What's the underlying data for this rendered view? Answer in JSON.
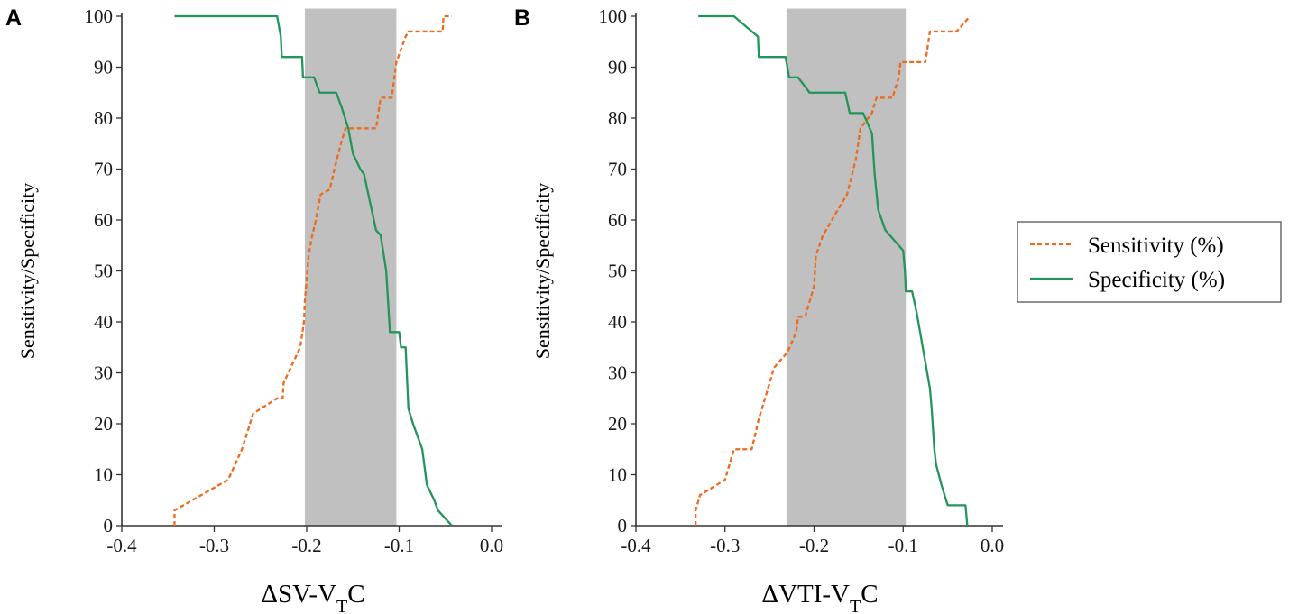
{
  "legend": {
    "sensitivity_label": "Sensitivity (%)",
    "specificity_label": "Specificity (%)"
  },
  "colors": {
    "sensitivity": "#ee6a1c",
    "specificity": "#23955a",
    "shade": "#c0c0c0",
    "axis": "#333333"
  },
  "chart_data": [
    {
      "type": "line",
      "panel": "A",
      "xlabel_main": "ΔSV-V",
      "xlabel_sub": "T",
      "xlabel_tail": "C",
      "ylabel": "Sensitivity/Specificity",
      "xlim": [
        -0.4,
        0.0
      ],
      "ylim": [
        0,
        100
      ],
      "xticks": [
        -0.4,
        -0.3,
        -0.2,
        -0.1,
        0.0
      ],
      "xtick_labels": [
        "-0.4",
        "-0.3",
        "-0.2",
        "-0.1",
        "0.0"
      ],
      "yticks": [
        0,
        10,
        20,
        30,
        40,
        50,
        60,
        70,
        80,
        90,
        100
      ],
      "ytick_labels": [
        "0",
        "10",
        "20",
        "30",
        "40",
        "50",
        "60",
        "70",
        "80",
        "90",
        "100"
      ],
      "shaded_region": [
        -0.202,
        -0.103
      ],
      "series": [
        {
          "name": "Sensitivity (%)",
          "style": "dashed",
          "points": [
            [
              -0.343,
              0
            ],
            [
              -0.343,
              3
            ],
            [
              -0.285,
              9
            ],
            [
              -0.27,
              15
            ],
            [
              -0.263,
              19
            ],
            [
              -0.258,
              22
            ],
            [
              -0.232,
              25
            ],
            [
              -0.226,
              25
            ],
            [
              -0.225,
              28
            ],
            [
              -0.207,
              35
            ],
            [
              -0.203,
              40
            ],
            [
              -0.202,
              44
            ],
            [
              -0.198,
              53
            ],
            [
              -0.194,
              57
            ],
            [
              -0.19,
              60
            ],
            [
              -0.185,
              65
            ],
            [
              -0.175,
              66
            ],
            [
              -0.17,
              70
            ],
            [
              -0.163,
              75
            ],
            [
              -0.158,
              78
            ],
            [
              -0.15,
              78
            ],
            [
              -0.142,
              78
            ],
            [
              -0.125,
              78
            ],
            [
              -0.12,
              84
            ],
            [
              -0.108,
              84
            ],
            [
              -0.103,
              91
            ],
            [
              -0.093,
              96
            ],
            [
              -0.09,
              97
            ],
            [
              -0.07,
              97
            ],
            [
              -0.053,
              97
            ],
            [
              -0.052,
              100
            ],
            [
              -0.047,
              100
            ],
            [
              -0.043,
              100
            ]
          ]
        },
        {
          "name": "Specificity (%)",
          "style": "solid",
          "points": [
            [
              -0.343,
              100
            ],
            [
              -0.232,
              100
            ],
            [
              -0.228,
              96
            ],
            [
              -0.227,
              92
            ],
            [
              -0.205,
              92
            ],
            [
              -0.204,
              88
            ],
            [
              -0.192,
              88
            ],
            [
              -0.186,
              85
            ],
            [
              -0.168,
              85
            ],
            [
              -0.162,
              82
            ],
            [
              -0.155,
              78
            ],
            [
              -0.15,
              73
            ],
            [
              -0.142,
              70
            ],
            [
              -0.138,
              69
            ],
            [
              -0.125,
              58
            ],
            [
              -0.12,
              57
            ],
            [
              -0.114,
              50
            ],
            [
              -0.11,
              38
            ],
            [
              -0.1,
              38
            ],
            [
              -0.098,
              35
            ],
            [
              -0.093,
              35
            ],
            [
              -0.09,
              23
            ],
            [
              -0.085,
              20
            ],
            [
              -0.075,
              15
            ],
            [
              -0.07,
              8
            ],
            [
              -0.062,
              5
            ],
            [
              -0.058,
              3
            ],
            [
              -0.053,
              2
            ],
            [
              -0.043,
              0
            ]
          ]
        }
      ]
    },
    {
      "type": "line",
      "panel": "B",
      "xlabel_main": "ΔVTI-V",
      "xlabel_sub": "T",
      "xlabel_tail": "C",
      "ylabel": "Sensitivity/Specificity",
      "xlim": [
        -0.4,
        0.0
      ],
      "ylim": [
        0,
        100
      ],
      "xticks": [
        -0.4,
        -0.3,
        -0.2,
        -0.1,
        0.0
      ],
      "xtick_labels": [
        "-0.4",
        "-0.3",
        "-0.2",
        "-0.1",
        "0.0"
      ],
      "yticks": [
        0,
        10,
        20,
        30,
        40,
        50,
        60,
        70,
        80,
        90,
        100
      ],
      "ytick_labels": [
        "0",
        "10",
        "20",
        "30",
        "40",
        "50",
        "60",
        "70",
        "80",
        "90",
        "100"
      ],
      "shaded_region": [
        -0.231,
        -0.097
      ],
      "series": [
        {
          "name": "Sensitivity (%)",
          "style": "dashed",
          "points": [
            [
              -0.333,
              0
            ],
            [
              -0.333,
              3
            ],
            [
              -0.328,
              6
            ],
            [
              -0.3,
              9
            ],
            [
              -0.29,
              15
            ],
            [
              -0.27,
              15
            ],
            [
              -0.262,
              21
            ],
            [
              -0.255,
              25
            ],
            [
              -0.245,
              31
            ],
            [
              -0.23,
              34
            ],
            [
              -0.22,
              38
            ],
            [
              -0.218,
              41
            ],
            [
              -0.21,
              41
            ],
            [
              -0.2,
              47
            ],
            [
              -0.198,
              53
            ],
            [
              -0.19,
              57
            ],
            [
              -0.18,
              60
            ],
            [
              -0.17,
              63
            ],
            [
              -0.163,
              65
            ],
            [
              -0.153,
              72
            ],
            [
              -0.148,
              78
            ],
            [
              -0.135,
              81
            ],
            [
              -0.13,
              84
            ],
            [
              -0.112,
              84
            ],
            [
              -0.105,
              88
            ],
            [
              -0.103,
              91
            ],
            [
              -0.095,
              91
            ],
            [
              -0.075,
              91
            ],
            [
              -0.07,
              97
            ],
            [
              -0.04,
              97
            ],
            [
              -0.025,
              100
            ]
          ]
        },
        {
          "name": "Specificity (%)",
          "style": "solid",
          "points": [
            [
              -0.33,
              100
            ],
            [
              -0.29,
              100
            ],
            [
              -0.263,
              96
            ],
            [
              -0.262,
              92
            ],
            [
              -0.232,
              92
            ],
            [
              -0.228,
              88
            ],
            [
              -0.218,
              88
            ],
            [
              -0.205,
              85
            ],
            [
              -0.185,
              85
            ],
            [
              -0.165,
              85
            ],
            [
              -0.16,
              81
            ],
            [
              -0.145,
              81
            ],
            [
              -0.135,
              77
            ],
            [
              -0.132,
              69
            ],
            [
              -0.128,
              62
            ],
            [
              -0.12,
              58
            ],
            [
              -0.1,
              54
            ],
            [
              -0.098,
              50
            ],
            [
              -0.097,
              46
            ],
            [
              -0.09,
              46
            ],
            [
              -0.085,
              42
            ],
            [
              -0.078,
              35
            ],
            [
              -0.07,
              27
            ],
            [
              -0.068,
              23
            ],
            [
              -0.065,
              15
            ],
            [
              -0.063,
              12
            ],
            [
              -0.057,
              8
            ],
            [
              -0.05,
              4
            ],
            [
              -0.04,
              4
            ],
            [
              -0.03,
              4
            ],
            [
              -0.028,
              0
            ]
          ]
        }
      ]
    }
  ]
}
